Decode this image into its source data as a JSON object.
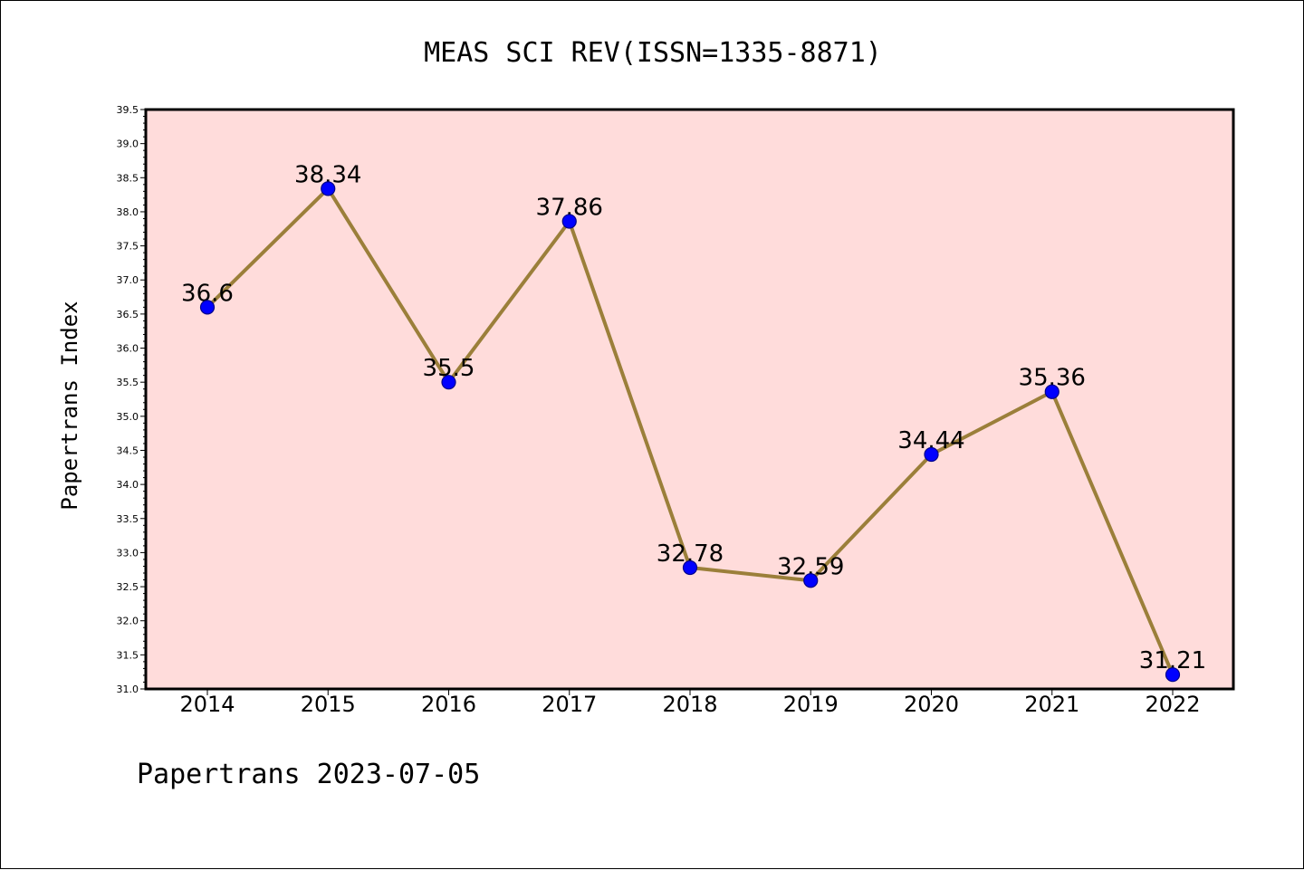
{
  "chart_data": {
    "type": "line",
    "title": "MEAS SCI REV(ISSN=1335-8871)",
    "ylabel": "Papertrans Index",
    "xlabel": "",
    "categories": [
      "2014",
      "2015",
      "2016",
      "2017",
      "2018",
      "2019",
      "2020",
      "2021",
      "2022"
    ],
    "values": [
      36.6,
      38.34,
      35.5,
      37.86,
      32.78,
      32.59,
      34.44,
      35.36,
      31.21
    ],
    "data_labels": [
      "36.6",
      "38.34",
      "35.5",
      "37.86",
      "32.78",
      "32.59",
      "34.44",
      "35.36",
      "31.21"
    ],
    "ylim": [
      31.0,
      39.5
    ],
    "ytick_step": 0.5,
    "yticks": [
      "31.0",
      "31.5",
      "32.0",
      "32.5",
      "33.0",
      "33.5",
      "34.0",
      "34.5",
      "35.0",
      "35.5",
      "36.0",
      "36.5",
      "37.0",
      "37.5",
      "38.0",
      "38.5",
      "39.0",
      "39.5"
    ],
    "grid": false,
    "legend": "none",
    "colors": {
      "plot_background": "#ffdcdb",
      "line": "#9b7f3a",
      "marker": "#0000ff",
      "marker_edge": "#00008b"
    }
  },
  "footer": {
    "text": "Papertrans 2023-07-05"
  }
}
